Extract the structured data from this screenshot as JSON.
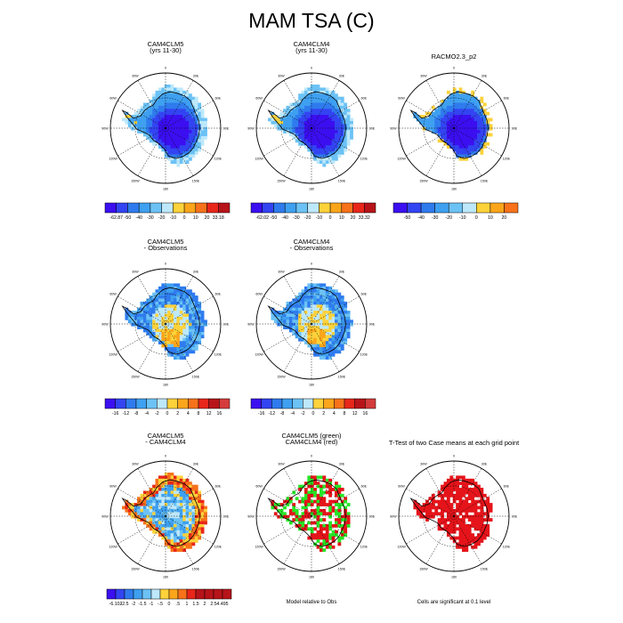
{
  "page_title": "MAM TSA (C)",
  "colors": {
    "abs_scale": [
      "#3b0ff0",
      "#3344f2",
      "#2f7bee",
      "#3fa0f0",
      "#6cc2f5",
      "#bde8fb",
      "#fdd23a",
      "#fba51a",
      "#f7721a",
      "#e8261a",
      "#b7141a"
    ],
    "diff_scale": [
      "#3b0ff0",
      "#3344f2",
      "#2f7bee",
      "#3fa0f0",
      "#6cc2f5",
      "#bde8fb",
      "#fdd23a",
      "#fba51a",
      "#f7721a",
      "#e8261a",
      "#b7141a",
      "#d53b3b"
    ],
    "significance_green": "#26e626",
    "significance_red": "#e5141a"
  },
  "rows": [
    {
      "panels": [
        {
          "title1": "CAM4CLM5",
          "title2": "(yrs 11-30)",
          "colorbar": [
            "-62.87",
            "-50",
            "-40",
            "-30",
            "-20",
            "-10",
            "0",
            "10",
            "20",
            "33.18"
          ]
        },
        {
          "title1": "CAM4CLM4",
          "title2": "(yrs 11-30)",
          "colorbar": [
            "-62.02",
            "-50",
            "-40",
            "-30",
            "-20",
            "-10",
            "0",
            "10",
            "20",
            "33.32"
          ]
        },
        {
          "title1": "RACMO2.3_p2",
          "title2": "",
          "colorbar": [
            "-50",
            "-40",
            "-30",
            "-20",
            "-10",
            "0",
            "10",
            "20"
          ]
        }
      ]
    },
    {
      "panels": [
        {
          "title1": "CAM4CLM5",
          "title2": "- Observations",
          "colorbar": [
            "-16",
            "-12",
            "-8",
            "-4",
            "-2",
            "0",
            "2",
            "4",
            "8",
            "12",
            "16"
          ]
        },
        {
          "title1": "CAM4CLM4",
          "title2": "- Observations",
          "colorbar": [
            "-16",
            "-12",
            "-8",
            "-4",
            "-2",
            "0",
            "2",
            "4",
            "8",
            "12",
            "16"
          ]
        }
      ]
    },
    {
      "panels": [
        {
          "title1": "CAM4CLM5",
          "title2": "- CAM4CLM4",
          "colorbar": [
            "-6.102",
            "-2.5",
            "-2",
            "-1.5",
            "-1",
            "-.5",
            "0",
            ".5",
            "1",
            "1.5",
            "2",
            "2.5",
            "4.495"
          ]
        },
        {
          "title1": "CAM4CLM5 (green)",
          "title2": "CAM4CLM4 (red)",
          "note": "Model relative to Obs"
        },
        {
          "title1": "T-Test of two Case means at each grid point",
          "title2": "",
          "note": "Cells are significant at 0.1 level"
        }
      ]
    }
  ],
  "map_labels": {
    "top": "0",
    "bottom": "180",
    "left": "90W",
    "right": "90E",
    "upper_left": "30W",
    "upper_right": "30E",
    "mid_left_upper": "60W",
    "mid_right_upper": "60E",
    "mid_left_lower": "120W",
    "mid_right_lower": "120E",
    "lower_left": "150W",
    "lower_right": "150E"
  },
  "chart_data": {
    "type": "heatmap",
    "title": "MAM TSA (C)",
    "projection": "South polar stereographic, Antarctica",
    "panels": [
      {
        "title": "CAM4CLM5 (yrs 11-30)",
        "range": [
          -62.87,
          33.18
        ],
        "levels": [
          -50,
          -40,
          -30,
          -20,
          -10,
          0,
          10,
          20
        ]
      },
      {
        "title": "CAM4CLM4 (yrs 11-30)",
        "range": [
          -62.02,
          33.32
        ],
        "levels": [
          -50,
          -40,
          -30,
          -20,
          -10,
          0,
          10,
          20
        ]
      },
      {
        "title": "RACMO2.3_p2",
        "levels": [
          -50,
          -40,
          -30,
          -20,
          -10,
          0,
          10,
          20
        ]
      },
      {
        "title": "CAM4CLM5 - Observations",
        "levels": [
          -16,
          -12,
          -8,
          -4,
          -2,
          0,
          2,
          4,
          8,
          12,
          16
        ]
      },
      {
        "title": "CAM4CLM4 - Observations",
        "levels": [
          -16,
          -12,
          -8,
          -4,
          -2,
          0,
          2,
          4,
          8,
          12,
          16
        ]
      },
      {
        "title": "CAM4CLM5 - CAM4CLM4",
        "range": [
          -6.102,
          4.495
        ],
        "levels": [
          -2.5,
          -2,
          -1.5,
          -1,
          -0.5,
          0,
          0.5,
          1,
          1.5,
          2,
          2.5
        ]
      },
      {
        "title": "CAM4CLM5 (green) CAM4CLM4 (red)",
        "note": "Model relative to Obs"
      },
      {
        "title": "T-Test of two Case means at each grid point",
        "note": "Cells are significant at 0.1 level"
      }
    ]
  }
}
